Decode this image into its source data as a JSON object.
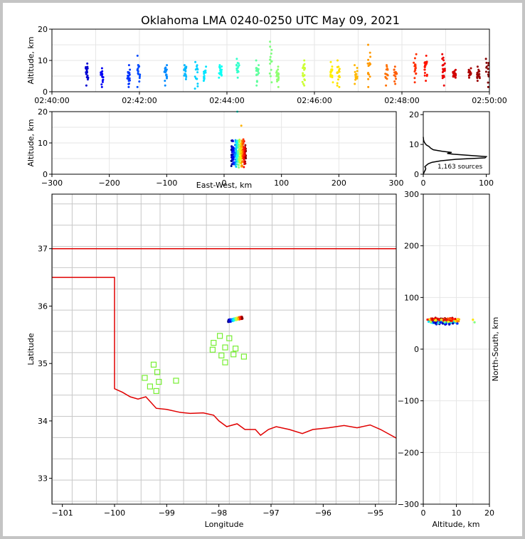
{
  "chart_data": [
    {
      "panel": "time-altitude",
      "type": "scatter",
      "title": "Oklahoma LMA 0240-0250 UTC May 09, 2021",
      "ylabel": "Altitude, km",
      "xlabel": "",
      "ylim": [
        0,
        20
      ],
      "x_ticks": [
        "02:40:00",
        "02:42:00",
        "02:44:00",
        "02:46:00",
        "02:48:00",
        "02:50:00"
      ],
      "y_ticks": [
        "0",
        "10",
        "20"
      ],
      "x_range_minutes": [
        0,
        10
      ],
      "grid": true,
      "clusters": [
        {
          "t": 0.8,
          "zmin": 2.0,
          "zmax": 9.0
        },
        {
          "t": 1.15,
          "zmin": 1.5,
          "zmax": 7.5
        },
        {
          "t": 1.75,
          "zmin": 1.5,
          "zmax": 8.5
        },
        {
          "t": 1.98,
          "zmin": 1.5,
          "zmax": 11.5
        },
        {
          "t": 2.6,
          "zmin": 2.0,
          "zmax": 8.5
        },
        {
          "t": 3.05,
          "zmin": 4.0,
          "zmax": 8.5
        },
        {
          "t": 3.3,
          "zmin": 1.0,
          "zmax": 9.5
        },
        {
          "t": 3.5,
          "zmin": 3.5,
          "zmax": 8.0
        },
        {
          "t": 3.85,
          "zmin": 4.5,
          "zmax": 8.5
        },
        {
          "t": 4.25,
          "zmin": 4.5,
          "zmax": 10.5
        },
        {
          "t": 4.7,
          "zmin": 2.0,
          "zmax": 10.0
        },
        {
          "t": 5.0,
          "zmin": 3.0,
          "zmax": 16.0
        },
        {
          "t": 5.15,
          "zmin": 1.5,
          "zmax": 8.0
        },
        {
          "t": 5.75,
          "zmin": 2.0,
          "zmax": 10.0
        },
        {
          "t": 6.4,
          "zmin": 3.0,
          "zmax": 9.5
        },
        {
          "t": 6.55,
          "zmin": 1.5,
          "zmax": 10.0
        },
        {
          "t": 6.95,
          "zmin": 2.5,
          "zmax": 8.5
        },
        {
          "t": 7.25,
          "zmin": 1.5,
          "zmax": 15.0
        },
        {
          "t": 7.65,
          "zmin": 2.0,
          "zmax": 8.5
        },
        {
          "t": 7.85,
          "zmin": 2.5,
          "zmax": 8.0
        },
        {
          "t": 8.3,
          "zmin": 3.0,
          "zmax": 12.0
        },
        {
          "t": 8.55,
          "zmin": 3.5,
          "zmax": 11.5
        },
        {
          "t": 8.95,
          "zmin": 2.0,
          "zmax": 12.0
        },
        {
          "t": 9.2,
          "zmin": 4.5,
          "zmax": 7.0
        },
        {
          "t": 9.55,
          "zmin": 4.5,
          "zmax": 7.5
        },
        {
          "t": 9.75,
          "zmin": 3.5,
          "zmax": 8.0
        },
        {
          "t": 9.95,
          "zmin": 1.5,
          "zmax": 10.5
        }
      ]
    },
    {
      "panel": "east-west-altitude",
      "type": "scatter",
      "xlabel": "East-West, km",
      "ylabel": "Altitude, km",
      "xlim": [
        -300,
        300
      ],
      "ylim": [
        0,
        20
      ],
      "x_ticks": [
        "−300",
        "−200",
        "−100",
        "0",
        "100",
        "200",
        "300"
      ],
      "y_ticks": [
        "0",
        "10",
        "20"
      ],
      "grid": true,
      "cluster": {
        "x_min": 8,
        "x_max": 38,
        "z_min": 1,
        "z_max": 12
      }
    },
    {
      "panel": "altitude-histogram",
      "type": "line",
      "annotation": "1,163 sources",
      "x_ticks": [
        "0",
        "100"
      ],
      "y_ticks": [
        "0",
        "10",
        "20"
      ],
      "xlim": [
        0,
        105
      ],
      "ylim": [
        0,
        21
      ],
      "profile": [
        [
          0,
          0.0
        ],
        [
          1.0,
          0.5
        ],
        [
          2.0,
          1.0
        ],
        [
          3.5,
          1.5
        ],
        [
          4.0,
          2.0
        ],
        [
          2.5,
          2.5
        ],
        [
          5.0,
          3.0
        ],
        [
          8.0,
          3.5
        ],
        [
          14.0,
          4.0
        ],
        [
          28.0,
          4.5
        ],
        [
          52.0,
          5.0
        ],
        [
          98.0,
          5.5
        ],
        [
          100.0,
          5.9
        ],
        [
          75.0,
          6.3
        ],
        [
          48.0,
          6.7
        ],
        [
          38.0,
          7.0
        ],
        [
          45.0,
          7.3
        ],
        [
          30.0,
          7.7
        ],
        [
          16.0,
          8.2
        ],
        [
          12.0,
          8.7
        ],
        [
          9.0,
          9.3
        ],
        [
          5.0,
          9.8
        ],
        [
          3.0,
          10.3
        ],
        [
          1.5,
          10.8
        ],
        [
          0.5,
          11.5
        ],
        [
          0.0,
          12.5
        ]
      ]
    },
    {
      "panel": "plan-view",
      "type": "map",
      "xlabel": "Longitude",
      "ylabel": "Latitude",
      "xlim": [
        -101.2,
        -94.6
      ],
      "ylim": [
        32.55,
        37.95
      ],
      "x_ticks": [
        "−101",
        "−100",
        "−99",
        "−98",
        "−97",
        "−96",
        "−95"
      ],
      "y_ticks": [
        "33",
        "34",
        "35",
        "36",
        "37"
      ],
      "sensor_stations": [
        [
          -99.25,
          34.98
        ],
        [
          -99.18,
          34.85
        ],
        [
          -99.42,
          34.75
        ],
        [
          -99.15,
          34.68
        ],
        [
          -98.82,
          34.7
        ],
        [
          -99.32,
          34.6
        ],
        [
          -99.2,
          34.52
        ],
        [
          -97.98,
          35.48
        ],
        [
          -98.1,
          35.36
        ],
        [
          -97.88,
          35.28
        ],
        [
          -98.12,
          35.24
        ],
        [
          -97.68,
          35.26
        ],
        [
          -97.95,
          35.14
        ],
        [
          -97.72,
          35.16
        ],
        [
          -97.88,
          35.02
        ],
        [
          -97.52,
          35.12
        ],
        [
          -97.8,
          35.44
        ]
      ],
      "lightning_cluster": {
        "lon_min": -97.85,
        "lon_max": -97.55,
        "lat_min": 35.72,
        "lat_max": 35.82
      }
    },
    {
      "panel": "altitude-north-south",
      "type": "scatter",
      "xlabel": "Altitude, km",
      "ylabel": "North-South, km",
      "xlim": [
        0,
        20
      ],
      "ylim": [
        -300,
        300
      ],
      "x_ticks": [
        "0",
        "10",
        "20"
      ],
      "y_ticks": [
        "−300",
        "−200",
        "−100",
        "0",
        "100",
        "200",
        "300"
      ],
      "grid": true,
      "cluster": {
        "z_min": 0.5,
        "z_max": 12.5,
        "ns_min": 47,
        "ns_max": 61
      }
    }
  ],
  "colors": {
    "early": "#00008b",
    "late": "#8b0000",
    "station": "#77ee33",
    "state_border": "#e00000",
    "county": "#c8c8c8",
    "grid": "#e6e6e6"
  }
}
